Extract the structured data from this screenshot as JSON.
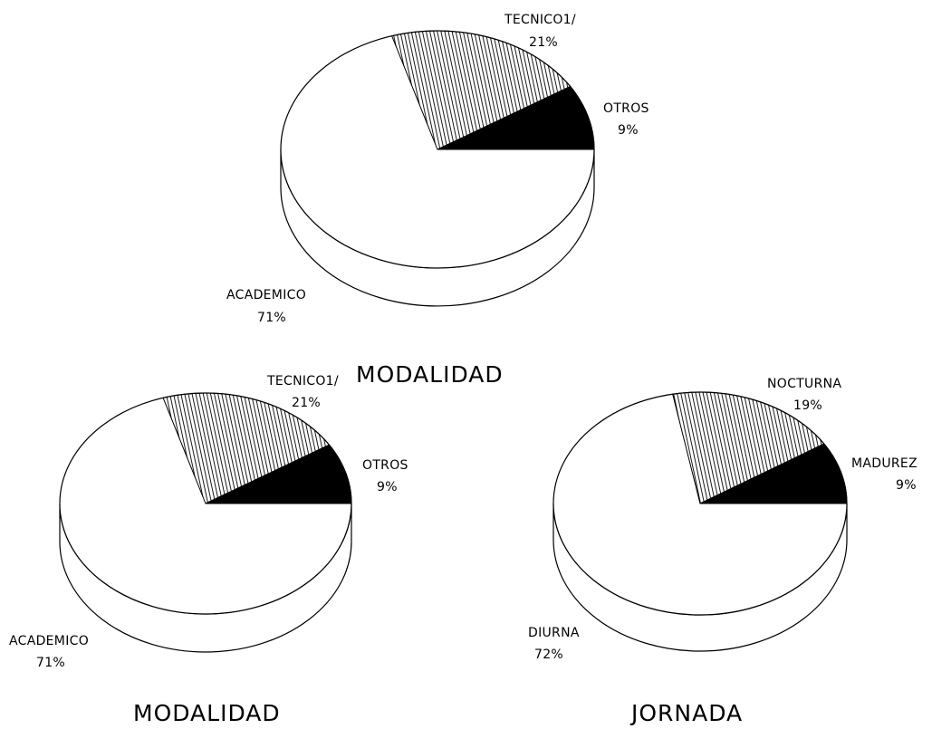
{
  "chart_data": [
    {
      "type": "pie",
      "title": "MODALIDAD",
      "slices": [
        {
          "label": "ACADEMICO",
          "percent_text": "71%",
          "value": 71,
          "fill": "white"
        },
        {
          "label": "TECNICO1/",
          "percent_text": "21%",
          "value": 21,
          "fill": "hatch"
        },
        {
          "label": "OTROS",
          "percent_text": "9%",
          "value": 9,
          "fill": "black"
        }
      ]
    },
    {
      "type": "pie",
      "title": "MODALIDAD",
      "slices": [
        {
          "label": "ACADEMICO",
          "percent_text": "71%",
          "value": 71,
          "fill": "white"
        },
        {
          "label": "TECNICO1/",
          "percent_text": "21%",
          "value": 21,
          "fill": "hatch"
        },
        {
          "label": "OTROS",
          "percent_text": "9%",
          "value": 9,
          "fill": "black"
        }
      ]
    },
    {
      "type": "pie",
      "title": "JORNADA",
      "slices": [
        {
          "label": "DIURNA",
          "percent_text": "72%",
          "value": 72,
          "fill": "white"
        },
        {
          "label": "NOCTURNA",
          "percent_text": "19%",
          "value": 19,
          "fill": "hatch"
        },
        {
          "label": "MADUREZ",
          "percent_text": "9%",
          "value": 9,
          "fill": "black"
        }
      ]
    }
  ],
  "colors": {
    "ink": "#000000",
    "paper": "#ffffff"
  }
}
